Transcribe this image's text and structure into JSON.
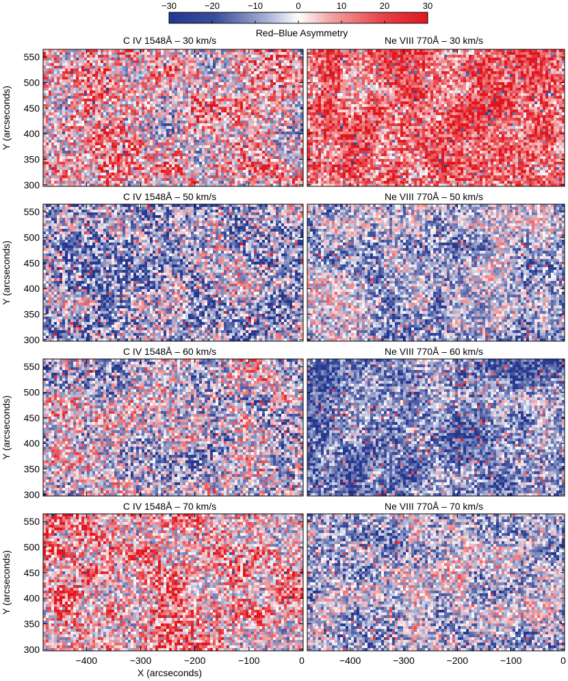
{
  "chart_data": {
    "type": "heatmap",
    "colorbar": {
      "title": "Red–Blue Asymmetry",
      "range": [
        -30,
        30
      ],
      "ticks": [
        "−30",
        "−20",
        "−10",
        "0",
        "10",
        "20",
        "30"
      ],
      "tick_values": [
        -30,
        -20,
        -10,
        0,
        10,
        20,
        30
      ],
      "colors": {
        "negative": "#24378f",
        "zero": "#ffffff",
        "positive": "#e0161e"
      }
    },
    "xlabel": "X (arcseconds)",
    "ylabel": "Y (arcseconds)",
    "xlim": [
      -480,
      0
    ],
    "ylim": [
      297,
      565
    ],
    "x_ticks": [
      "−400",
      "−300",
      "−200",
      "−100",
      "0"
    ],
    "x_tick_values": [
      -400,
      -300,
      -200,
      -100,
      0
    ],
    "y_ticks": [
      "300",
      "350",
      "400",
      "450",
      "500",
      "550"
    ],
    "y_tick_values": [
      300,
      350,
      400,
      450,
      500,
      550
    ],
    "panels": [
      {
        "title": "C IV 1548Å – 30 km/s",
        "mean": 6,
        "spread": 18
      },
      {
        "title": "Ne VIII 770Å – 30 km/s",
        "mean": 17,
        "spread": 13
      },
      {
        "title": "C IV 1548Å – 50 km/s",
        "mean": -12,
        "spread": 18
      },
      {
        "title": "Ne VIII 770Å – 50 km/s",
        "mean": -10,
        "spread": 14
      },
      {
        "title": "C IV 1548Å – 60 km/s",
        "mean": -5,
        "spread": 18
      },
      {
        "title": "Ne VIII 770Å – 60 km/s",
        "mean": -16,
        "spread": 13
      },
      {
        "title": "C IV 1548Å – 70 km/s",
        "mean": 9,
        "spread": 17
      },
      {
        "title": "Ne VIII 770Å – 70 km/s",
        "mean": -8,
        "spread": 15
      }
    ]
  }
}
